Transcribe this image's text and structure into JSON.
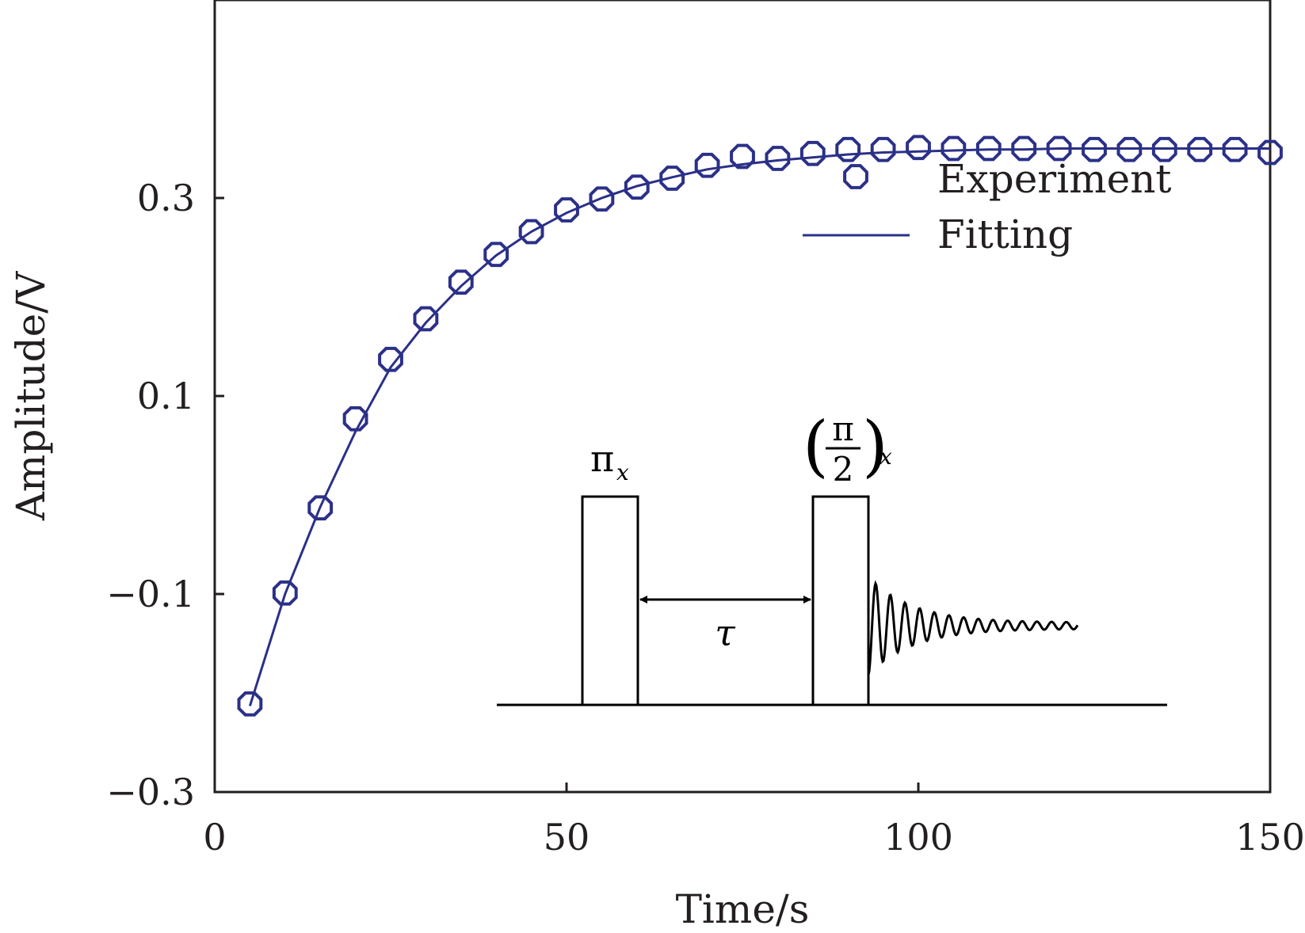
{
  "chart_data": {
    "type": "scatter",
    "title": "",
    "xlabel": "Time/s",
    "ylabel": "Amplitude/V",
    "xlim": [
      0,
      150
    ],
    "ylim": [
      -0.3,
      0.5
    ],
    "xticks": [
      0,
      50,
      100,
      150
    ],
    "xtick_labels": [
      "0",
      "50",
      "100",
      "150"
    ],
    "yticks": [
      -0.3,
      -0.1,
      0.1,
      0.3
    ],
    "ytick_labels": [
      "−0.3",
      "−0.1",
      "0.1",
      "0.3"
    ],
    "grid": false,
    "legend_position": "top-right",
    "series": [
      {
        "name": "Experiment",
        "kind": "scatter",
        "marker": "octagon-open",
        "color": "#2b3088",
        "x": [
          5,
          10,
          15,
          20,
          25,
          30,
          35,
          40,
          45,
          50,
          55,
          60,
          65,
          70,
          75,
          80,
          85,
          90,
          95,
          100,
          105,
          110,
          115,
          120,
          125,
          130,
          135,
          140,
          145,
          150
        ],
        "y": [
          -0.211,
          -0.099,
          -0.013,
          0.077,
          0.137,
          0.178,
          0.215,
          0.243,
          0.266,
          0.288,
          0.299,
          0.311,
          0.32,
          0.333,
          0.342,
          0.34,
          0.345,
          0.349,
          0.349,
          0.351,
          0.35,
          0.35,
          0.35,
          0.35,
          0.349,
          0.349,
          0.349,
          0.349,
          0.349,
          0.346
        ]
      },
      {
        "name": "Fitting",
        "kind": "line",
        "color": "#2b3088",
        "model": "exponential recovery",
        "x": [
          5,
          10,
          15,
          20,
          25,
          30,
          35,
          40,
          45,
          50,
          55,
          60,
          65,
          70,
          75,
          80,
          85,
          90,
          95,
          100,
          105,
          110,
          115,
          120,
          125,
          130,
          135,
          140,
          145,
          150
        ],
        "y": [
          -0.213,
          -0.1,
          -0.012,
          0.064,
          0.129,
          0.174,
          0.211,
          0.242,
          0.266,
          0.285,
          0.3,
          0.312,
          0.321,
          0.329,
          0.334,
          0.338,
          0.341,
          0.344,
          0.346,
          0.347,
          0.348,
          0.349,
          0.349,
          0.35,
          0.35,
          0.35,
          0.35,
          0.35,
          0.35,
          0.35
        ]
      }
    ],
    "inset": {
      "pulse1_label": "π",
      "pulse1_sub": "x",
      "pulse2_num": "π",
      "pulse2_den": "2",
      "pulse2_sub": "x",
      "delay_label": "τ"
    }
  }
}
